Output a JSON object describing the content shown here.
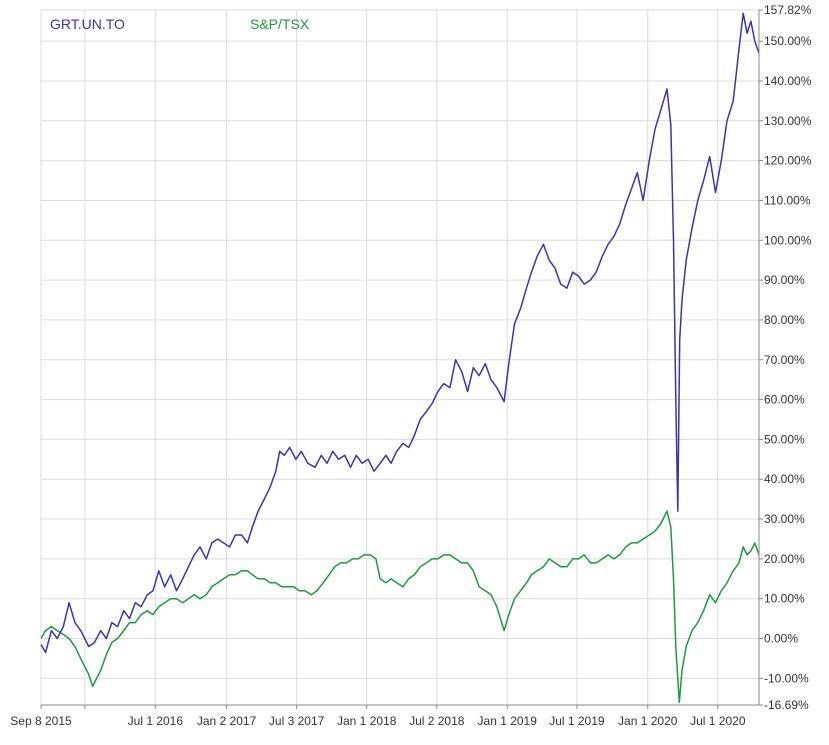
{
  "chart_data": {
    "type": "line",
    "title": "",
    "xlabel": "",
    "ylabel": "",
    "x_ticks": [
      {
        "label": "Sep 8 2015",
        "date": "2015-09-08"
      },
      {
        "label": "",
        "date": "2015-12-31"
      },
      {
        "label": "Jul 1 2016",
        "date": "2016-07-01"
      },
      {
        "label": "Jan 2 2017",
        "date": "2017-01-02"
      },
      {
        "label": "Jul 3 2017",
        "date": "2017-07-03"
      },
      {
        "label": "Jan 1 2018",
        "date": "2018-01-01"
      },
      {
        "label": "Jul 2 2018",
        "date": "2018-07-02"
      },
      {
        "label": "Jan 1 2019",
        "date": "2019-01-01"
      },
      {
        "label": "Jul 1 2019",
        "date": "2019-07-01"
      },
      {
        "label": "Jan 1 2020",
        "date": "2020-01-01"
      },
      {
        "label": "Jul 1 2020",
        "date": "2020-07-01"
      }
    ],
    "xlim": [
      "2015-09-08",
      "2020-10-16"
    ],
    "y_ticks": [
      {
        "value": 157.82,
        "label": "157.82%"
      },
      {
        "value": 150,
        "label": "150.00%"
      },
      {
        "value": 140,
        "label": "140.00%"
      },
      {
        "value": 130,
        "label": "130.00%"
      },
      {
        "value": 120,
        "label": "120.00%"
      },
      {
        "value": 110,
        "label": "110.00%"
      },
      {
        "value": 100,
        "label": "100.00%"
      },
      {
        "value": 90,
        "label": "90.00%"
      },
      {
        "value": 80,
        "label": "80.00%"
      },
      {
        "value": 70,
        "label": "70.00%"
      },
      {
        "value": 60,
        "label": "60.00%"
      },
      {
        "value": 50,
        "label": "50.00%"
      },
      {
        "value": 40,
        "label": "40.00%"
      },
      {
        "value": 30,
        "label": "30.00%"
      },
      {
        "value": 20,
        "label": "20.00%"
      },
      {
        "value": 10,
        "label": "10.00%"
      },
      {
        "value": 0,
        "label": "0.00%"
      },
      {
        "value": -10,
        "label": "-10.00%"
      },
      {
        "value": -16.69,
        "label": "-16.69%"
      }
    ],
    "ylim": [
      -16.69,
      157.82
    ],
    "grid": true,
    "legend_position": "top-left",
    "series": [
      {
        "name": "GRT.UN.TO",
        "color": "#3a34b0",
        "points": [
          [
            "2015-09-08",
            -1.5
          ],
          [
            "2015-09-20",
            -3.5
          ],
          [
            "2015-10-05",
            2
          ],
          [
            "2015-10-20",
            0
          ],
          [
            "2015-11-05",
            3
          ],
          [
            "2015-11-20",
            9
          ],
          [
            "2015-12-05",
            4
          ],
          [
            "2015-12-20",
            2
          ],
          [
            "2016-01-10",
            -2
          ],
          [
            "2016-01-25",
            -1
          ],
          [
            "2016-02-10",
            2
          ],
          [
            "2016-02-25",
            0
          ],
          [
            "2016-03-10",
            4
          ],
          [
            "2016-03-25",
            3
          ],
          [
            "2016-04-10",
            7
          ],
          [
            "2016-04-25",
            5
          ],
          [
            "2016-05-10",
            9
          ],
          [
            "2016-05-25",
            8
          ],
          [
            "2016-06-10",
            11
          ],
          [
            "2016-06-25",
            12
          ],
          [
            "2016-07-10",
            17
          ],
          [
            "2016-07-25",
            13
          ],
          [
            "2016-08-10",
            16
          ],
          [
            "2016-08-25",
            12
          ],
          [
            "2016-09-10",
            15
          ],
          [
            "2016-09-25",
            18
          ],
          [
            "2016-10-10",
            21
          ],
          [
            "2016-10-25",
            23
          ],
          [
            "2016-11-10",
            20
          ],
          [
            "2016-11-25",
            24
          ],
          [
            "2016-12-10",
            25
          ],
          [
            "2016-12-25",
            24
          ],
          [
            "2017-01-10",
            23
          ],
          [
            "2017-01-25",
            26
          ],
          [
            "2017-02-10",
            26
          ],
          [
            "2017-02-25",
            24
          ],
          [
            "2017-03-10",
            28
          ],
          [
            "2017-03-25",
            32
          ],
          [
            "2017-04-10",
            35
          ],
          [
            "2017-04-25",
            38
          ],
          [
            "2017-05-10",
            42
          ],
          [
            "2017-05-20",
            47
          ],
          [
            "2017-06-01",
            46
          ],
          [
            "2017-06-15",
            48
          ],
          [
            "2017-07-01",
            45
          ],
          [
            "2017-07-15",
            47
          ],
          [
            "2017-08-01",
            44
          ],
          [
            "2017-08-20",
            43
          ],
          [
            "2017-09-05",
            46
          ],
          [
            "2017-09-20",
            44
          ],
          [
            "2017-10-05",
            47
          ],
          [
            "2017-10-20",
            45
          ],
          [
            "2017-11-05",
            46
          ],
          [
            "2017-11-20",
            43
          ],
          [
            "2017-12-05",
            46
          ],
          [
            "2017-12-20",
            44
          ],
          [
            "2018-01-05",
            45
          ],
          [
            "2018-01-20",
            42
          ],
          [
            "2018-02-05",
            44
          ],
          [
            "2018-02-20",
            46
          ],
          [
            "2018-03-05",
            44
          ],
          [
            "2018-03-20",
            47
          ],
          [
            "2018-04-05",
            49
          ],
          [
            "2018-04-20",
            48
          ],
          [
            "2018-05-05",
            51
          ],
          [
            "2018-05-20",
            55
          ],
          [
            "2018-06-05",
            57
          ],
          [
            "2018-06-20",
            59
          ],
          [
            "2018-07-05",
            62
          ],
          [
            "2018-07-20",
            64
          ],
          [
            "2018-08-05",
            63
          ],
          [
            "2018-08-20",
            70
          ],
          [
            "2018-09-05",
            67
          ],
          [
            "2018-09-20",
            62
          ],
          [
            "2018-10-05",
            68
          ],
          [
            "2018-10-20",
            66
          ],
          [
            "2018-11-05",
            69
          ],
          [
            "2018-11-20",
            65
          ],
          [
            "2018-12-05",
            63
          ],
          [
            "2018-12-24",
            59.5
          ],
          [
            "2019-01-05",
            69
          ],
          [
            "2019-01-20",
            79
          ],
          [
            "2019-02-05",
            83
          ],
          [
            "2019-02-20",
            88
          ],
          [
            "2019-03-05",
            92
          ],
          [
            "2019-03-20",
            96
          ],
          [
            "2019-04-05",
            99
          ],
          [
            "2019-04-20",
            95
          ],
          [
            "2019-05-05",
            93
          ],
          [
            "2019-05-20",
            89
          ],
          [
            "2019-06-05",
            88
          ],
          [
            "2019-06-20",
            92
          ],
          [
            "2019-07-05",
            91
          ],
          [
            "2019-07-20",
            89
          ],
          [
            "2019-08-05",
            90
          ],
          [
            "2019-08-20",
            92
          ],
          [
            "2019-09-05",
            96
          ],
          [
            "2019-09-20",
            99
          ],
          [
            "2019-10-05",
            101
          ],
          [
            "2019-10-20",
            104
          ],
          [
            "2019-11-05",
            109
          ],
          [
            "2019-11-20",
            113
          ],
          [
            "2019-12-05",
            117
          ],
          [
            "2019-12-20",
            110
          ],
          [
            "2020-01-05",
            120
          ],
          [
            "2020-01-20",
            128
          ],
          [
            "2020-02-05",
            133
          ],
          [
            "2020-02-20",
            138
          ],
          [
            "2020-03-01",
            129
          ],
          [
            "2020-03-08",
            100
          ],
          [
            "2020-03-14",
            60
          ],
          [
            "2020-03-19",
            32
          ],
          [
            "2020-03-24",
            75
          ],
          [
            "2020-03-30",
            85
          ],
          [
            "2020-04-10",
            95
          ],
          [
            "2020-04-25",
            103
          ],
          [
            "2020-05-10",
            110
          ],
          [
            "2020-05-25",
            115
          ],
          [
            "2020-06-10",
            121
          ],
          [
            "2020-06-25",
            112
          ],
          [
            "2020-07-10",
            120
          ],
          [
            "2020-07-25",
            130
          ],
          [
            "2020-08-10",
            135
          ],
          [
            "2020-08-25",
            148
          ],
          [
            "2020-09-05",
            157
          ],
          [
            "2020-09-15",
            152
          ],
          [
            "2020-09-25",
            155
          ],
          [
            "2020-10-05",
            150
          ],
          [
            "2020-10-16",
            147
          ]
        ]
      },
      {
        "name": "S&P/TSX",
        "color": "#1a9c3c",
        "points": [
          [
            "2015-09-08",
            0
          ],
          [
            "2015-09-20",
            2
          ],
          [
            "2015-10-05",
            3
          ],
          [
            "2015-10-20",
            2
          ],
          [
            "2015-11-05",
            1
          ],
          [
            "2015-11-20",
            0
          ],
          [
            "2015-12-05",
            -2
          ],
          [
            "2015-12-20",
            -5
          ],
          [
            "2016-01-10",
            -9
          ],
          [
            "2016-01-20",
            -12
          ],
          [
            "2016-02-10",
            -8
          ],
          [
            "2016-02-25",
            -4
          ],
          [
            "2016-03-10",
            -1
          ],
          [
            "2016-03-25",
            0
          ],
          [
            "2016-04-10",
            2
          ],
          [
            "2016-04-25",
            4
          ],
          [
            "2016-05-10",
            4
          ],
          [
            "2016-05-25",
            6
          ],
          [
            "2016-06-10",
            7
          ],
          [
            "2016-06-25",
            6
          ],
          [
            "2016-07-10",
            8
          ],
          [
            "2016-07-25",
            9
          ],
          [
            "2016-08-10",
            10
          ],
          [
            "2016-08-25",
            10
          ],
          [
            "2016-09-10",
            9
          ],
          [
            "2016-09-25",
            10
          ],
          [
            "2016-10-10",
            11
          ],
          [
            "2016-10-25",
            10
          ],
          [
            "2016-11-10",
            11
          ],
          [
            "2016-11-25",
            13
          ],
          [
            "2016-12-10",
            14
          ],
          [
            "2016-12-25",
            15
          ],
          [
            "2017-01-10",
            16
          ],
          [
            "2017-01-25",
            16
          ],
          [
            "2017-02-10",
            17
          ],
          [
            "2017-02-25",
            17
          ],
          [
            "2017-03-10",
            16
          ],
          [
            "2017-03-25",
            15
          ],
          [
            "2017-04-10",
            15
          ],
          [
            "2017-04-25",
            14
          ],
          [
            "2017-05-10",
            14
          ],
          [
            "2017-05-25",
            13
          ],
          [
            "2017-06-10",
            13
          ],
          [
            "2017-06-25",
            13
          ],
          [
            "2017-07-10",
            12
          ],
          [
            "2017-07-25",
            12
          ],
          [
            "2017-08-10",
            11
          ],
          [
            "2017-08-25",
            12
          ],
          [
            "2017-09-10",
            14
          ],
          [
            "2017-09-25",
            16
          ],
          [
            "2017-10-10",
            18
          ],
          [
            "2017-10-25",
            19
          ],
          [
            "2017-11-10",
            19
          ],
          [
            "2017-11-25",
            20
          ],
          [
            "2017-12-10",
            20
          ],
          [
            "2017-12-25",
            21
          ],
          [
            "2018-01-10",
            21
          ],
          [
            "2018-01-25",
            20
          ],
          [
            "2018-02-05",
            15
          ],
          [
            "2018-02-20",
            14
          ],
          [
            "2018-03-05",
            15
          ],
          [
            "2018-03-20",
            14
          ],
          [
            "2018-04-05",
            13
          ],
          [
            "2018-04-20",
            15
          ],
          [
            "2018-05-05",
            16
          ],
          [
            "2018-05-20",
            18
          ],
          [
            "2018-06-05",
            19
          ],
          [
            "2018-06-20",
            20
          ],
          [
            "2018-07-05",
            20
          ],
          [
            "2018-07-20",
            21
          ],
          [
            "2018-08-05",
            21
          ],
          [
            "2018-08-20",
            20
          ],
          [
            "2018-09-05",
            19
          ],
          [
            "2018-09-20",
            19
          ],
          [
            "2018-10-05",
            17
          ],
          [
            "2018-10-20",
            13
          ],
          [
            "2018-11-05",
            12
          ],
          [
            "2018-11-20",
            11
          ],
          [
            "2018-12-05",
            8
          ],
          [
            "2018-12-24",
            2
          ],
          [
            "2019-01-05",
            6
          ],
          [
            "2019-01-20",
            10
          ],
          [
            "2019-02-05",
            12
          ],
          [
            "2019-02-20",
            14
          ],
          [
            "2019-03-05",
            16
          ],
          [
            "2019-03-20",
            17
          ],
          [
            "2019-04-05",
            18
          ],
          [
            "2019-04-20",
            20
          ],
          [
            "2019-05-05",
            19
          ],
          [
            "2019-05-20",
            18
          ],
          [
            "2019-06-05",
            18
          ],
          [
            "2019-06-20",
            20
          ],
          [
            "2019-07-05",
            20
          ],
          [
            "2019-07-20",
            21
          ],
          [
            "2019-08-05",
            19
          ],
          [
            "2019-08-20",
            19
          ],
          [
            "2019-09-05",
            20
          ],
          [
            "2019-09-20",
            21
          ],
          [
            "2019-10-05",
            20
          ],
          [
            "2019-10-20",
            21
          ],
          [
            "2019-11-05",
            23
          ],
          [
            "2019-11-20",
            24
          ],
          [
            "2019-12-05",
            24
          ],
          [
            "2019-12-20",
            25
          ],
          [
            "2020-01-05",
            26
          ],
          [
            "2020-01-20",
            27
          ],
          [
            "2020-02-05",
            29
          ],
          [
            "2020-02-20",
            32
          ],
          [
            "2020-03-01",
            28
          ],
          [
            "2020-03-08",
            15
          ],
          [
            "2020-03-14",
            -2
          ],
          [
            "2020-03-23",
            -16
          ],
          [
            "2020-03-30",
            -8
          ],
          [
            "2020-04-10",
            -2
          ],
          [
            "2020-04-25",
            2
          ],
          [
            "2020-05-10",
            4
          ],
          [
            "2020-05-25",
            7
          ],
          [
            "2020-06-10",
            11
          ],
          [
            "2020-06-25",
            9
          ],
          [
            "2020-07-10",
            12
          ],
          [
            "2020-07-25",
            14
          ],
          [
            "2020-08-10",
            17
          ],
          [
            "2020-08-25",
            19
          ],
          [
            "2020-09-05",
            23
          ],
          [
            "2020-09-15",
            21
          ],
          [
            "2020-09-25",
            22
          ],
          [
            "2020-10-05",
            24
          ],
          [
            "2020-10-16",
            21
          ]
        ]
      }
    ]
  }
}
